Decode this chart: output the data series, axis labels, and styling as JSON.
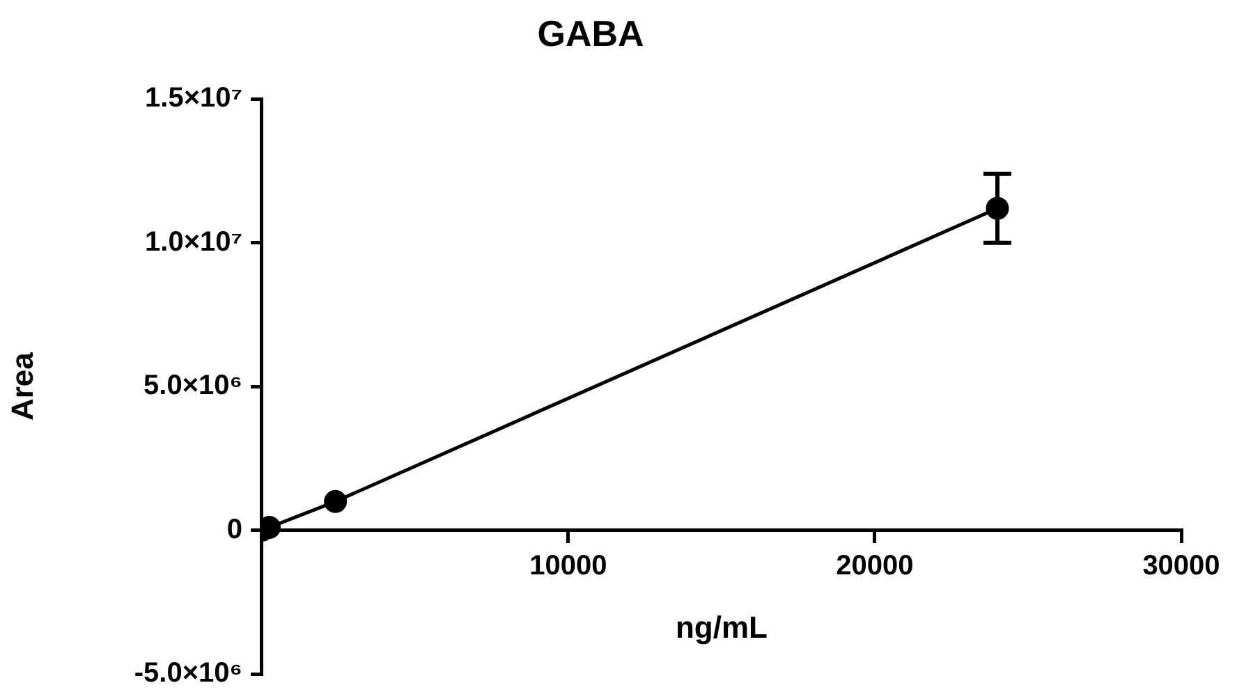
{
  "chart_data": {
    "type": "line",
    "title": "GABA",
    "xlabel": "ng/mL",
    "ylabel": "Area",
    "x": [
      0,
      240,
      2400,
      24000
    ],
    "series": [
      {
        "color": "#000000",
        "values": [
          0,
          100000,
          1000000,
          11200000
        ],
        "errors": [
          null,
          null,
          null,
          [
            10000000,
            12400000
          ]
        ]
      }
    ],
    "xlim": [
      0,
      30000
    ],
    "xticks": [
      {
        "value": 0,
        "label": null
      },
      10000,
      20000,
      30000
    ],
    "ylim": [
      -5000000,
      15000000
    ],
    "yticks": [
      {
        "value": -5000000,
        "label": "-5.0×10⁶"
      },
      {
        "value": 0,
        "label": "0"
      },
      {
        "value": 5000000,
        "label": "5.0×10⁶"
      },
      {
        "value": 10000000,
        "label": "1.0×10⁷"
      },
      {
        "value": 15000000,
        "label": "1.5×10⁷"
      }
    ],
    "grid": false,
    "legend": false,
    "marker": "circle",
    "line_style": "solid"
  }
}
